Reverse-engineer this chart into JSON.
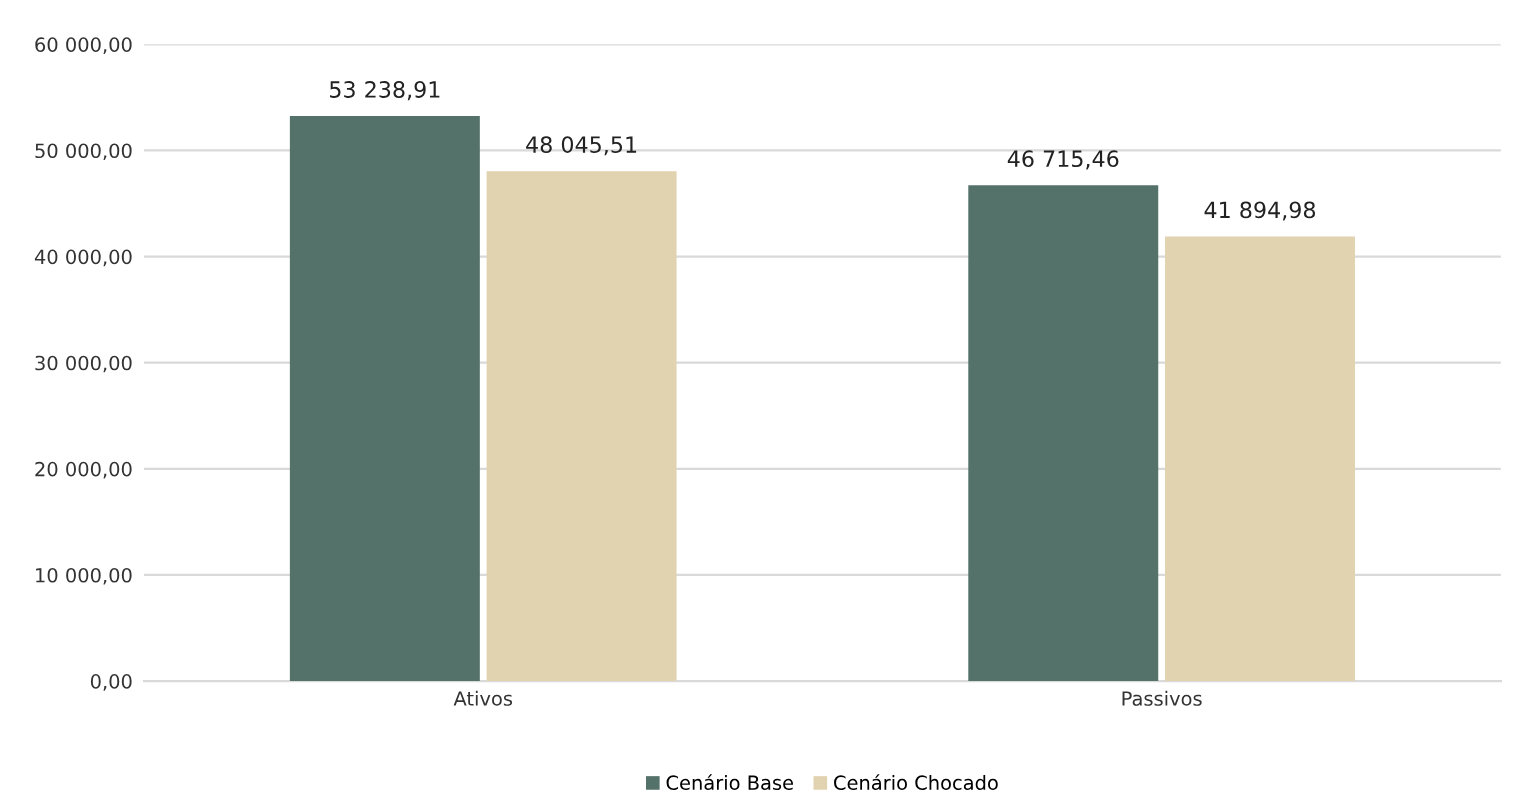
{
  "chart_data": {
    "type": "bar",
    "categories": [
      "Ativos",
      "Passivos"
    ],
    "series": [
      {
        "name": "Cenário Base",
        "color": "#55726a",
        "values": [
          53238.91,
          46715.46
        ],
        "value_labels": [
          "53 238,91",
          "46 715,46"
        ]
      },
      {
        "name": "Cenário Chocado",
        "color": "#e2d3b0",
        "values": [
          48045.51,
          41894.98
        ],
        "value_labels": [
          "48 045,51",
          "41 894,98"
        ]
      }
    ],
    "ylim": [
      0,
      60000
    ],
    "yticks": [
      {
        "value": 0,
        "label": "0,00"
      },
      {
        "value": 10000,
        "label": "10 000,00"
      },
      {
        "value": 20000,
        "label": "20 000,00"
      },
      {
        "value": 30000,
        "label": "30 000,00"
      },
      {
        "value": 40000,
        "label": "40 000,00"
      },
      {
        "value": 50000,
        "label": "50 000,00"
      },
      {
        "value": 60000,
        "label": "60 000,00"
      }
    ],
    "grid": "y",
    "legend": "bottom"
  }
}
